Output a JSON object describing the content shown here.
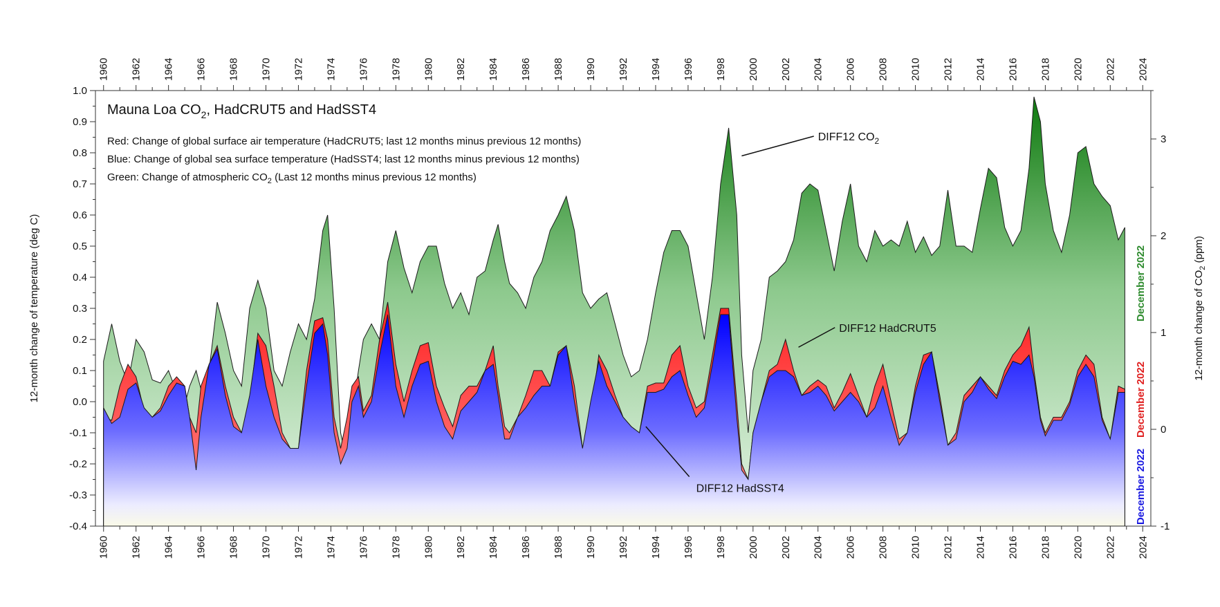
{
  "chart_data": {
    "type": "area",
    "title": "Mauna Loa CO",
    "title_sub": "2",
    "title_rest": ", HadCRUT5 and HadSST4",
    "legend_lines": [
      {
        "text": "Red: Change of global surface air temperature (HadCRUT5; last 12 months minus previous 12 months)",
        "sub": "",
        "rest": ""
      },
      {
        "text": "Blue: Change of global sea surface temperature (HadSST4; last 12 months minus previous 12 months)",
        "sub": "",
        "rest": ""
      },
      {
        "text": "Green: Change of atmospheric CO",
        "sub": "2",
        "rest": " (Last 12 months minus previous 12 months)"
      }
    ],
    "ylabel_left": "12-month change of temperature (deg C)",
    "ylabel_right": "12-month change of CO",
    "ylabel_right_sub": "2",
    "ylabel_right_rest": " (ppm)",
    "ylim_left": [
      -0.4,
      1.0
    ],
    "ylim_right": [
      -1,
      3.5
    ],
    "xlim": [
      1959.5,
      2024.5
    ],
    "x_ticks": [
      1960,
      1962,
      1964,
      1966,
      1968,
      1970,
      1972,
      1974,
      1976,
      1978,
      1980,
      1982,
      1984,
      1986,
      1988,
      1990,
      1992,
      1994,
      1996,
      1998,
      2000,
      2002,
      2004,
      2006,
      2008,
      2010,
      2012,
      2014,
      2016,
      2018,
      2020,
      2022,
      2024
    ],
    "y_ticks_left": [
      1.0,
      0.9,
      0.8,
      0.7,
      0.6,
      0.5,
      0.4,
      0.3,
      0.2,
      0.1,
      0.0,
      -0.1,
      -0.2,
      -0.3,
      -0.4
    ],
    "y_tick_labels_left": [
      "1.0",
      "0.9",
      "0.8",
      "0.7",
      "0.6",
      "0.5",
      "0.4",
      "0.3",
      "0.2",
      "0.1",
      "0.0",
      "-0.1",
      "-0.2",
      "-0.3",
      "-0.4"
    ],
    "y_ticks_right": [
      3,
      2,
      1,
      0,
      -1
    ],
    "annotations": [
      {
        "text": "DIFF12 CO",
        "sub": "2",
        "label_year": 2004,
        "label_y": 0.84,
        "point_year": 1999.3,
        "point_y": 0.79
      },
      {
        "text": "DIFF12 HadCRUT5",
        "sub": "",
        "label_year": 2005.3,
        "label_y": 0.225,
        "point_year": 2002.8,
        "point_y": 0.175
      },
      {
        "text": "DIFF12 HadSST4",
        "sub": "",
        "label_year": 1996.5,
        "label_y": -0.29,
        "point_year": 1993.4,
        "point_y": -0.08
      }
    ],
    "side_labels": [
      {
        "text": "December 2022",
        "color": "#2e8b2e"
      },
      {
        "text": "December 2022",
        "color": "#e02020"
      },
      {
        "text": "December 2022",
        "color": "#1a1ae0"
      }
    ],
    "series": [
      {
        "name": "DIFF12 CO2",
        "color": "#1f7a1f",
        "x": [
          1960.0,
          1960.5,
          1961.0,
          1961.5,
          1962.0,
          1962.5,
          1963.0,
          1963.5,
          1964.0,
          1964.5,
          1965.0,
          1965.3,
          1965.7,
          1966.0,
          1966.5,
          1967.0,
          1967.5,
          1968.0,
          1968.5,
          1969.0,
          1969.5,
          1970.0,
          1970.5,
          1971.0,
          1971.5,
          1972.0,
          1972.5,
          1973.0,
          1973.5,
          1973.8,
          1974.2,
          1974.6,
          1975.0,
          1975.3,
          1975.7,
          1976.0,
          1976.5,
          1977.0,
          1977.5,
          1978.0,
          1978.5,
          1979.0,
          1979.5,
          1980.0,
          1980.5,
          1981.0,
          1981.5,
          1982.0,
          1982.5,
          1983.0,
          1983.5,
          1984.0,
          1984.3,
          1984.7,
          1985.0,
          1985.5,
          1986.0,
          1986.5,
          1987.0,
          1987.5,
          1988.0,
          1988.5,
          1989.0,
          1989.5,
          1990.0,
          1990.5,
          1991.0,
          1991.5,
          1992.0,
          1992.5,
          1993.0,
          1993.5,
          1994.0,
          1994.5,
          1995.0,
          1995.5,
          1996.0,
          1996.5,
          1997.0,
          1997.5,
          1998.0,
          1998.5,
          1999.0,
          1999.3,
          1999.7,
          2000.0,
          2000.5,
          2001.0,
          2001.5,
          2002.0,
          2002.5,
          2003.0,
          2003.5,
          2004.0,
          2004.5,
          2005.0,
          2005.5,
          2006.0,
          2006.5,
          2007.0,
          2007.5,
          2008.0,
          2008.5,
          2009.0,
          2009.5,
          2010.0,
          2010.5,
          2011.0,
          2011.5,
          2012.0,
          2012.5,
          2013.0,
          2013.5,
          2014.0,
          2014.5,
          2015.0,
          2015.5,
          2016.0,
          2016.5,
          2017.0,
          2017.3,
          2017.7,
          2018.0,
          2018.5,
          2019.0,
          2019.5,
          2020.0,
          2020.5,
          2021.0,
          2021.5,
          2022.0,
          2022.5,
          2022.9
        ],
        "y": [
          0.13,
          0.25,
          0.13,
          0.06,
          0.2,
          0.16,
          0.07,
          0.06,
          0.1,
          0.03,
          -0.01,
          0.05,
          0.1,
          0.04,
          0.1,
          0.32,
          0.22,
          0.1,
          0.05,
          0.3,
          0.39,
          0.3,
          0.1,
          0.05,
          0.16,
          0.25,
          0.2,
          0.33,
          0.55,
          0.6,
          0.3,
          -0.1,
          -0.2,
          -0.05,
          0.1,
          0.2,
          0.25,
          0.2,
          0.45,
          0.55,
          0.43,
          0.35,
          0.45,
          0.5,
          0.5,
          0.38,
          0.3,
          0.35,
          0.28,
          0.4,
          0.42,
          0.52,
          0.57,
          0.45,
          0.38,
          0.35,
          0.3,
          0.4,
          0.45,
          0.55,
          0.6,
          0.66,
          0.55,
          0.35,
          0.3,
          0.33,
          0.35,
          0.25,
          0.15,
          0.08,
          0.1,
          0.2,
          0.35,
          0.48,
          0.55,
          0.55,
          0.5,
          0.35,
          0.2,
          0.4,
          0.7,
          0.88,
          0.6,
          0.15,
          -0.1,
          0.1,
          0.2,
          0.4,
          0.42,
          0.45,
          0.52,
          0.67,
          0.7,
          0.68,
          0.55,
          0.42,
          0.58,
          0.7,
          0.5,
          0.45,
          0.55,
          0.5,
          0.52,
          0.5,
          0.58,
          0.48,
          0.53,
          0.47,
          0.5,
          0.68,
          0.5,
          0.5,
          0.48,
          0.62,
          0.75,
          0.72,
          0.56,
          0.5,
          0.55,
          0.75,
          0.98,
          0.9,
          0.7,
          0.55,
          0.48,
          0.6,
          0.8,
          0.82,
          0.7,
          0.66,
          0.63,
          0.52,
          0.56
        ]
      },
      {
        "name": "DIFF12 HadCRUT5",
        "color": "#e02020",
        "x": [
          1960.0,
          1960.5,
          1961.0,
          1961.5,
          1962.0,
          1962.5,
          1963.0,
          1963.5,
          1964.0,
          1964.5,
          1965.0,
          1965.3,
          1965.7,
          1966.0,
          1966.5,
          1967.0,
          1967.5,
          1968.0,
          1968.5,
          1969.0,
          1969.5,
          1970.0,
          1970.5,
          1971.0,
          1971.5,
          1972.0,
          1972.5,
          1973.0,
          1973.5,
          1973.8,
          1974.2,
          1974.6,
          1975.0,
          1975.3,
          1975.7,
          1976.0,
          1976.5,
          1977.0,
          1977.5,
          1978.0,
          1978.5,
          1979.0,
          1979.5,
          1980.0,
          1980.5,
          1981.0,
          1981.5,
          1982.0,
          1982.5,
          1983.0,
          1983.5,
          1984.0,
          1984.3,
          1984.7,
          1985.0,
          1985.5,
          1986.0,
          1986.5,
          1987.0,
          1987.5,
          1988.0,
          1988.5,
          1989.0,
          1989.5,
          1990.0,
          1990.5,
          1991.0,
          1991.5,
          1992.0,
          1992.5,
          1993.0,
          1993.5,
          1994.0,
          1994.5,
          1995.0,
          1995.5,
          1996.0,
          1996.5,
          1997.0,
          1997.5,
          1998.0,
          1998.5,
          1999.0,
          1999.3,
          1999.7,
          2000.0,
          2000.5,
          2001.0,
          2001.5,
          2002.0,
          2002.5,
          2003.0,
          2003.5,
          2004.0,
          2004.5,
          2005.0,
          2005.5,
          2006.0,
          2006.5,
          2007.0,
          2007.5,
          2008.0,
          2008.5,
          2009.0,
          2009.5,
          2010.0,
          2010.5,
          2011.0,
          2011.5,
          2012.0,
          2012.5,
          2013.0,
          2013.5,
          2014.0,
          2014.5,
          2015.0,
          2015.5,
          2016.0,
          2016.5,
          2017.0,
          2017.3,
          2017.7,
          2018.0,
          2018.5,
          2019.0,
          2019.5,
          2020.0,
          2020.5,
          2021.0,
          2021.5,
          2022.0,
          2022.5,
          2022.9
        ],
        "y": [
          -0.05,
          -0.06,
          0.05,
          0.12,
          0.08,
          -0.03,
          -0.05,
          -0.02,
          0.05,
          0.08,
          0.05,
          -0.05,
          -0.1,
          0.05,
          0.12,
          0.18,
          0.05,
          -0.05,
          -0.1,
          0.0,
          0.22,
          0.18,
          0.05,
          -0.1,
          -0.15,
          -0.15,
          0.1,
          0.26,
          0.27,
          0.2,
          -0.05,
          -0.15,
          -0.05,
          0.05,
          0.08,
          -0.03,
          0.02,
          0.2,
          0.32,
          0.12,
          0.0,
          0.1,
          0.18,
          0.19,
          0.05,
          -0.02,
          -0.08,
          0.02,
          0.05,
          0.05,
          0.1,
          0.18,
          0.05,
          -0.08,
          -0.1,
          -0.05,
          0.02,
          0.1,
          0.1,
          0.05,
          0.16,
          0.18,
          0.05,
          -0.15,
          -0.05,
          0.15,
          0.1,
          0.02,
          -0.05,
          -0.08,
          -0.1,
          0.05,
          0.06,
          0.06,
          0.15,
          0.18,
          0.05,
          -0.02,
          0.0,
          0.15,
          0.3,
          0.3,
          0.0,
          -0.2,
          -0.25,
          -0.1,
          0.0,
          0.1,
          0.12,
          0.2,
          0.1,
          0.02,
          0.05,
          0.07,
          0.05,
          -0.02,
          0.03,
          0.09,
          0.02,
          -0.05,
          0.05,
          0.12,
          0.0,
          -0.12,
          -0.1,
          0.05,
          0.15,
          0.16,
          0.02,
          -0.14,
          -0.1,
          0.02,
          0.05,
          0.08,
          0.05,
          0.02,
          0.1,
          0.15,
          0.18,
          0.24,
          0.1,
          -0.05,
          -0.1,
          -0.05,
          -0.05,
          0.0,
          0.1,
          0.15,
          0.12,
          -0.05,
          -0.12,
          0.05,
          0.04
        ]
      },
      {
        "name": "DIFF12 HadSST4",
        "color": "#1a1ae0",
        "x": [
          1960.0,
          1960.5,
          1961.0,
          1961.5,
          1962.0,
          1962.5,
          1963.0,
          1963.5,
          1964.0,
          1964.5,
          1965.0,
          1965.3,
          1965.7,
          1966.0,
          1966.5,
          1967.0,
          1967.5,
          1968.0,
          1968.5,
          1969.0,
          1969.5,
          1970.0,
          1970.5,
          1971.0,
          1971.5,
          1972.0,
          1972.5,
          1973.0,
          1973.5,
          1973.8,
          1974.2,
          1974.6,
          1975.0,
          1975.3,
          1975.7,
          1976.0,
          1976.5,
          1977.0,
          1977.5,
          1978.0,
          1978.5,
          1979.0,
          1979.5,
          1980.0,
          1980.5,
          1981.0,
          1981.5,
          1982.0,
          1982.5,
          1983.0,
          1983.5,
          1984.0,
          1984.3,
          1984.7,
          1985.0,
          1985.5,
          1986.0,
          1986.5,
          1987.0,
          1987.5,
          1988.0,
          1988.5,
          1989.0,
          1989.5,
          1990.0,
          1990.5,
          1991.0,
          1991.5,
          1992.0,
          1992.5,
          1993.0,
          1993.5,
          1994.0,
          1994.5,
          1995.0,
          1995.5,
          1996.0,
          1996.5,
          1997.0,
          1997.5,
          1998.0,
          1998.5,
          1999.0,
          1999.3,
          1999.7,
          2000.0,
          2000.5,
          2001.0,
          2001.5,
          2002.0,
          2002.5,
          2003.0,
          2003.5,
          2004.0,
          2004.5,
          2005.0,
          2005.5,
          2006.0,
          2006.5,
          2007.0,
          2007.5,
          2008.0,
          2008.5,
          2009.0,
          2009.5,
          2010.0,
          2010.5,
          2011.0,
          2011.5,
          2012.0,
          2012.5,
          2013.0,
          2013.5,
          2014.0,
          2014.5,
          2015.0,
          2015.5,
          2016.0,
          2016.5,
          2017.0,
          2017.3,
          2017.7,
          2018.0,
          2018.5,
          2019.0,
          2019.5,
          2020.0,
          2020.5,
          2021.0,
          2021.5,
          2022.0,
          2022.5,
          2022.9
        ],
        "y": [
          -0.02,
          -0.07,
          -0.05,
          0.04,
          0.06,
          -0.02,
          -0.05,
          -0.03,
          0.02,
          0.06,
          0.05,
          -0.05,
          -0.22,
          -0.05,
          0.12,
          0.17,
          0.02,
          -0.08,
          -0.1,
          0.02,
          0.2,
          0.05,
          -0.05,
          -0.12,
          -0.15,
          -0.15,
          0.05,
          0.22,
          0.25,
          0.15,
          -0.1,
          -0.2,
          -0.15,
          0.0,
          0.05,
          -0.05,
          0.0,
          0.15,
          0.28,
          0.05,
          -0.05,
          0.05,
          0.12,
          0.13,
          0.0,
          -0.08,
          -0.12,
          -0.03,
          0.0,
          0.03,
          0.1,
          0.12,
          0.02,
          -0.12,
          -0.12,
          -0.05,
          -0.02,
          0.02,
          0.05,
          0.05,
          0.15,
          0.18,
          0.0,
          -0.15,
          0.0,
          0.13,
          0.05,
          0.0,
          -0.05,
          -0.08,
          -0.1,
          0.03,
          0.03,
          0.04,
          0.08,
          0.1,
          0.02,
          -0.05,
          -0.02,
          0.12,
          0.28,
          0.28,
          -0.05,
          -0.22,
          -0.25,
          -0.1,
          0.0,
          0.08,
          0.1,
          0.1,
          0.08,
          0.02,
          0.03,
          0.05,
          0.02,
          -0.03,
          0.0,
          0.03,
          0.0,
          -0.05,
          -0.02,
          0.05,
          -0.05,
          -0.14,
          -0.1,
          0.03,
          0.12,
          0.16,
          0.0,
          -0.14,
          -0.12,
          0.0,
          0.03,
          0.08,
          0.04,
          0.01,
          0.08,
          0.13,
          0.12,
          0.15,
          0.08,
          -0.06,
          -0.11,
          -0.06,
          -0.06,
          -0.01,
          0.08,
          0.12,
          0.08,
          -0.06,
          -0.12,
          0.03,
          0.03
        ]
      }
    ]
  }
}
